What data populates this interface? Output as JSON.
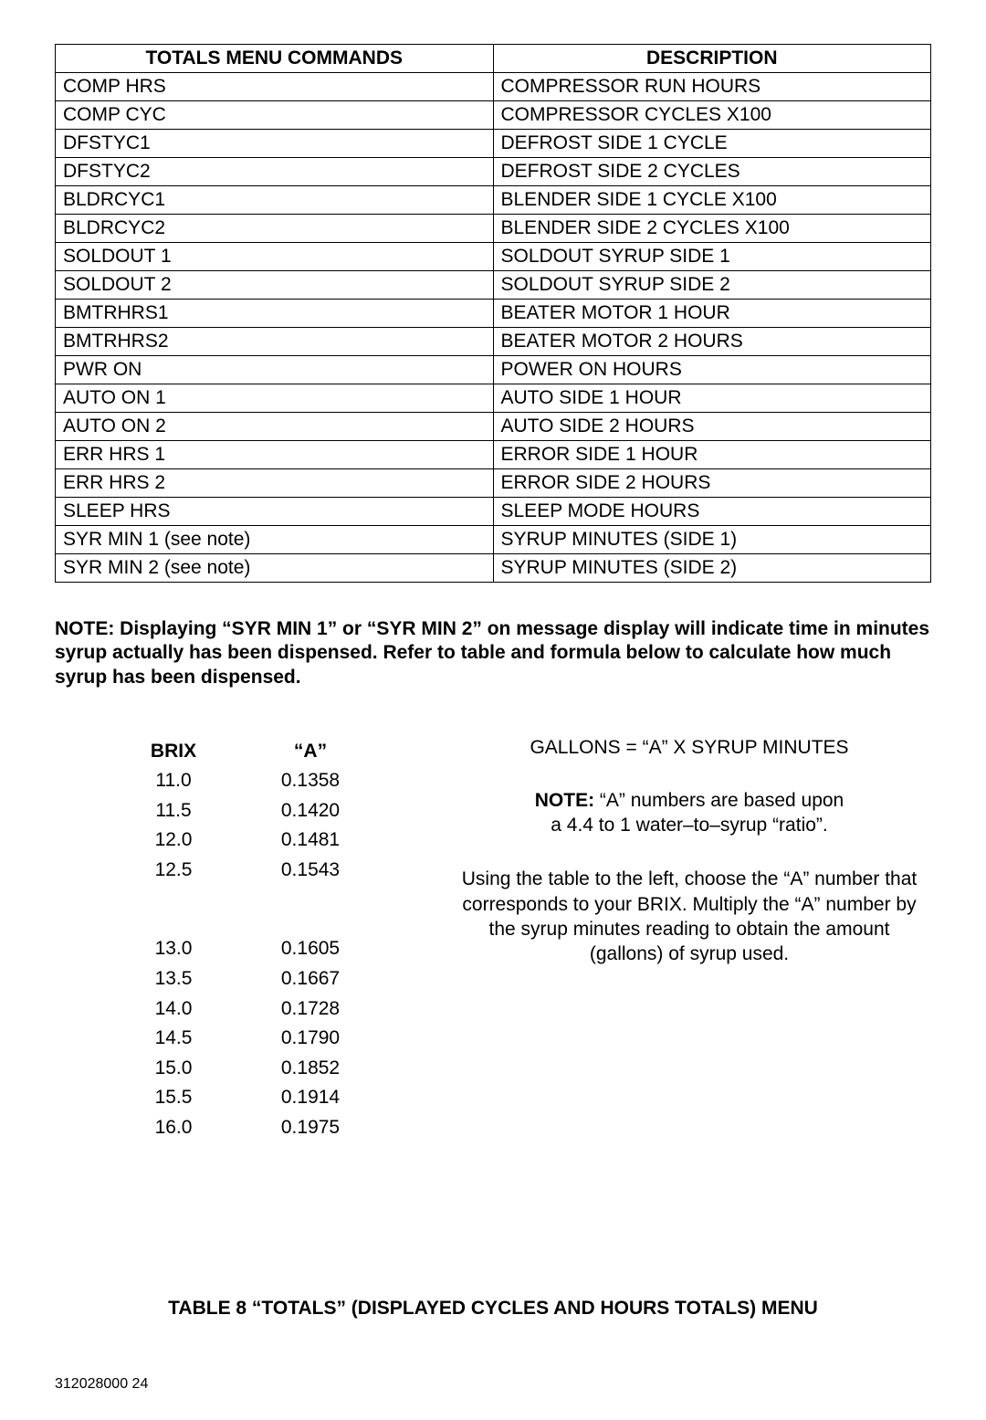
{
  "commands_table": {
    "headers": [
      "TOTALS MENU COMMANDS",
      "DESCRIPTION"
    ],
    "rows": [
      [
        "COMP HRS",
        "COMPRESSOR RUN HOURS"
      ],
      [
        "COMP CYC",
        "COMPRESSOR CYCLES X100"
      ],
      [
        "DFSTYC1",
        "DEFROST SIDE 1 CYCLE"
      ],
      [
        "DFSTYC2",
        "DEFROST SIDE 2 CYCLES"
      ],
      [
        "BLDRCYC1",
        "BLENDER SIDE 1 CYCLE X100"
      ],
      [
        "BLDRCYC2",
        "BLENDER SIDE 2 CYCLES X100"
      ],
      [
        "SOLDOUT 1",
        "SOLDOUT SYRUP SIDE 1"
      ],
      [
        "SOLDOUT 2",
        "SOLDOUT SYRUP SIDE 2"
      ],
      [
        "BMTRHRS1",
        "BEATER MOTOR 1 HOUR"
      ],
      [
        "BMTRHRS2",
        "BEATER MOTOR 2 HOURS"
      ],
      [
        "PWR ON",
        "POWER ON HOURS"
      ],
      [
        "AUTO ON 1",
        "AUTO SIDE 1 HOUR"
      ],
      [
        "AUTO ON 2",
        "AUTO SIDE 2 HOURS"
      ],
      [
        "ERR HRS 1",
        "ERROR SIDE 1 HOUR"
      ],
      [
        "ERR HRS 2",
        "ERROR SIDE 2 HOURS"
      ],
      [
        "SLEEP HRS",
        "SLEEP MODE HOURS"
      ],
      [
        "SYR MIN 1 (see note)",
        "SYRUP MINUTES (SIDE 1)"
      ],
      [
        "SYR MIN 2 (see note)",
        "SYRUP MINUTES (SIDE 2)"
      ]
    ]
  },
  "note1": "NOTE: Displaying “SYR MIN 1” or “SYR MIN 2” on message display will indicate time in minutes syrup actually has been dispensed. Refer to table and formula below to calculate how much syrup has been dispensed.",
  "brix": {
    "headers": [
      "BRIX",
      "“A”"
    ],
    "group1": [
      [
        "11.0",
        "0.1358"
      ],
      [
        "11.5",
        "0.1420"
      ],
      [
        "12.0",
        "0.1481"
      ],
      [
        "12.5",
        "0.1543"
      ]
    ],
    "group2": [
      [
        "13.0",
        "0.1605"
      ],
      [
        "13.5",
        "0.1667"
      ],
      [
        "14.0",
        "0.1728"
      ],
      [
        "14.5",
        "0.1790"
      ],
      [
        "15.0",
        "0.1852"
      ],
      [
        "15.5",
        "0.1914"
      ],
      [
        "16.0",
        "0.1975"
      ]
    ]
  },
  "right": {
    "formula": "GALLONS = “A”  X SYRUP MINUTES",
    "note2_label": "NOTE:",
    "note2_text_a": " “A” numbers are based upon",
    "note2_text_b": "a 4.4 to 1 water–to–syrup “ratio”.",
    "explain": "Using the table to the left, choose the “A” number that corresponds to your BRIX. Multiply the “A” number by the syrup minutes reading to obtain the amount (gallons) of syrup used."
  },
  "caption": "TABLE 8 “TOTALS” (DISPLAYED CYCLES AND HOURS TOTALS) MENU",
  "footer": {
    "docnum": "312028000",
    "page": "24"
  }
}
